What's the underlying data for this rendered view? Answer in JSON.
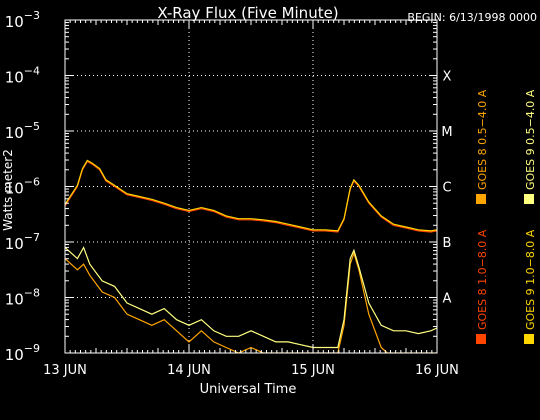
{
  "chart_data": {
    "type": "line",
    "title": "X-Ray Flux (Five Minute)",
    "begin_label": "BEGIN: 6/13/1998 0000",
    "ylabel": "Watts meter2",
    "xlabel": "Universal Time",
    "y_scale": "log",
    "ylim_exponents": [
      -9,
      -3
    ],
    "y_ticks": [
      {
        "exp": -9,
        "mantissa": "10",
        "sup": "−9"
      },
      {
        "exp": -8,
        "mantissa": "10",
        "sup": "−8"
      },
      {
        "exp": -7,
        "mantissa": "10",
        "sup": "−7"
      },
      {
        "exp": -6,
        "mantissa": "10",
        "sup": "−6"
      },
      {
        "exp": -5,
        "mantissa": "10",
        "sup": "−5"
      },
      {
        "exp": -4,
        "mantissa": "10",
        "sup": "−4"
      },
      {
        "exp": -3,
        "mantissa": "10",
        "sup": "−3"
      }
    ],
    "x_range_days": [
      13,
      16
    ],
    "x_ticks": [
      {
        "day": 13,
        "label": "13 JUN"
      },
      {
        "day": 14,
        "label": "14 JUN"
      },
      {
        "day": 15,
        "label": "15 JUN"
      },
      {
        "day": 16,
        "label": "16 JUN"
      }
    ],
    "flare_classes": [
      {
        "label": "X",
        "exp": -4
      },
      {
        "label": "M",
        "exp": -5
      },
      {
        "label": "C",
        "exp": -6
      },
      {
        "label": "B",
        "exp": -7
      },
      {
        "label": "A",
        "exp": -8
      }
    ],
    "grid": true,
    "legend_position": "right, vertical",
    "series": [
      {
        "name": "GOES 8 1.0−8.0 A",
        "color": "#ff4500",
        "band": "long",
        "satellite": "GOES 8",
        "points": [
          [
            13.0,
            -6.35
          ],
          [
            13.1,
            -6.0
          ],
          [
            13.14,
            -5.7
          ],
          [
            13.18,
            -5.55
          ],
          [
            13.22,
            -5.6
          ],
          [
            13.28,
            -5.7
          ],
          [
            13.33,
            -5.9
          ],
          [
            13.4,
            -6.0
          ],
          [
            13.5,
            -6.15
          ],
          [
            13.6,
            -6.2
          ],
          [
            13.7,
            -6.25
          ],
          [
            13.8,
            -6.32
          ],
          [
            13.9,
            -6.4
          ],
          [
            14.0,
            -6.45
          ],
          [
            14.1,
            -6.4
          ],
          [
            14.2,
            -6.45
          ],
          [
            14.3,
            -6.55
          ],
          [
            14.4,
            -6.6
          ],
          [
            14.5,
            -6.6
          ],
          [
            14.6,
            -6.62
          ],
          [
            14.7,
            -6.65
          ],
          [
            14.8,
            -6.7
          ],
          [
            14.9,
            -6.75
          ],
          [
            15.0,
            -6.8
          ],
          [
            15.1,
            -6.8
          ],
          [
            15.2,
            -6.82
          ],
          [
            15.25,
            -6.6
          ],
          [
            15.3,
            -6.05
          ],
          [
            15.33,
            -5.9
          ],
          [
            15.37,
            -6.0
          ],
          [
            15.45,
            -6.3
          ],
          [
            15.55,
            -6.55
          ],
          [
            15.65,
            -6.7
          ],
          [
            15.75,
            -6.75
          ],
          [
            15.85,
            -6.8
          ],
          [
            15.95,
            -6.82
          ],
          [
            16.0,
            -6.8
          ]
        ]
      },
      {
        "name": "GOES 8 0.5−4.0 A",
        "color": "#ffa500",
        "band": "short",
        "satellite": "GOES 8",
        "points": [
          [
            13.0,
            -7.3
          ],
          [
            13.1,
            -7.5
          ],
          [
            13.15,
            -7.4
          ],
          [
            13.2,
            -7.6
          ],
          [
            13.3,
            -7.9
          ],
          [
            13.4,
            -8.0
          ],
          [
            13.5,
            -8.3
          ],
          [
            13.6,
            -8.4
          ],
          [
            13.7,
            -8.5
          ],
          [
            13.8,
            -8.4
          ],
          [
            13.9,
            -8.6
          ],
          [
            14.0,
            -8.8
          ],
          [
            14.1,
            -8.6
          ],
          [
            14.2,
            -8.8
          ],
          [
            14.3,
            -8.9
          ],
          [
            14.4,
            -9.0
          ],
          [
            14.5,
            -8.9
          ],
          [
            14.6,
            -9.0
          ],
          [
            15.2,
            -9.0
          ],
          [
            15.25,
            -8.5
          ],
          [
            15.3,
            -7.4
          ],
          [
            15.33,
            -7.2
          ],
          [
            15.37,
            -7.5
          ],
          [
            15.45,
            -8.3
          ],
          [
            15.55,
            -8.9
          ],
          [
            15.6,
            -9.0
          ],
          [
            16.0,
            -9.0
          ]
        ]
      },
      {
        "name": "GOES 9 1.0−8.0 A",
        "color": "#ffd700",
        "band": "long",
        "satellite": "GOES 9",
        "points": [
          [
            13.0,
            -6.32
          ],
          [
            13.1,
            -5.98
          ],
          [
            13.14,
            -5.68
          ],
          [
            13.18,
            -5.53
          ],
          [
            13.22,
            -5.58
          ],
          [
            13.28,
            -5.68
          ],
          [
            13.33,
            -5.88
          ],
          [
            13.4,
            -5.98
          ],
          [
            13.5,
            -6.13
          ],
          [
            13.6,
            -6.18
          ],
          [
            13.7,
            -6.23
          ],
          [
            13.8,
            -6.3
          ],
          [
            13.9,
            -6.38
          ],
          [
            14.0,
            -6.43
          ],
          [
            14.1,
            -6.38
          ],
          [
            14.2,
            -6.43
          ],
          [
            14.3,
            -6.53
          ],
          [
            14.4,
            -6.58
          ],
          [
            14.5,
            -6.58
          ],
          [
            14.6,
            -6.6
          ],
          [
            14.7,
            -6.63
          ],
          [
            14.8,
            -6.68
          ],
          [
            14.9,
            -6.73
          ],
          [
            15.0,
            -6.78
          ],
          [
            15.1,
            -6.78
          ],
          [
            15.2,
            -6.8
          ],
          [
            15.25,
            -6.58
          ],
          [
            15.3,
            -6.03
          ],
          [
            15.33,
            -5.88
          ],
          [
            15.37,
            -5.98
          ],
          [
            15.45,
            -6.28
          ],
          [
            15.55,
            -6.53
          ],
          [
            15.65,
            -6.68
          ],
          [
            15.75,
            -6.73
          ],
          [
            15.85,
            -6.78
          ],
          [
            15.95,
            -6.8
          ],
          [
            16.0,
            -6.78
          ]
        ]
      },
      {
        "name": "GOES 9 0.5−4.0 A",
        "color": "#ffff80",
        "band": "short",
        "satellite": "GOES 9",
        "points": [
          [
            13.0,
            -7.1
          ],
          [
            13.1,
            -7.3
          ],
          [
            13.15,
            -7.1
          ],
          [
            13.2,
            -7.4
          ],
          [
            13.3,
            -7.7
          ],
          [
            13.4,
            -7.8
          ],
          [
            13.5,
            -8.1
          ],
          [
            13.6,
            -8.2
          ],
          [
            13.7,
            -8.3
          ],
          [
            13.8,
            -8.2
          ],
          [
            13.9,
            -8.4
          ],
          [
            14.0,
            -8.5
          ],
          [
            14.1,
            -8.4
          ],
          [
            14.2,
            -8.6
          ],
          [
            14.3,
            -8.7
          ],
          [
            14.4,
            -8.7
          ],
          [
            14.5,
            -8.6
          ],
          [
            14.6,
            -8.7
          ],
          [
            14.7,
            -8.8
          ],
          [
            14.8,
            -8.8
          ],
          [
            14.9,
            -8.85
          ],
          [
            15.0,
            -8.9
          ],
          [
            15.1,
            -8.9
          ],
          [
            15.2,
            -8.9
          ],
          [
            15.25,
            -8.4
          ],
          [
            15.3,
            -7.3
          ],
          [
            15.33,
            -7.15
          ],
          [
            15.37,
            -7.45
          ],
          [
            15.45,
            -8.1
          ],
          [
            15.55,
            -8.5
          ],
          [
            15.65,
            -8.6
          ],
          [
            15.75,
            -8.6
          ],
          [
            15.85,
            -8.65
          ],
          [
            15.95,
            -8.6
          ],
          [
            16.0,
            -8.55
          ]
        ]
      }
    ]
  }
}
